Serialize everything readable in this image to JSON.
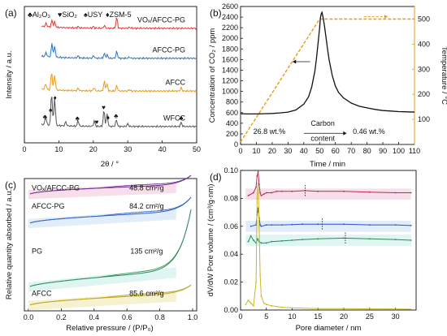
{
  "chart_data": [
    {
      "type": "line",
      "panel_label": "(a)",
      "xlabel": "2θ / °",
      "ylabel": "Intensity / a.u.",
      "xlim": [
        0,
        50
      ],
      "xticks": [
        0,
        10,
        20,
        30,
        40,
        50
      ],
      "legend_items": [
        {
          "symbol": "♣",
          "text": "Al₂O₃"
        },
        {
          "symbol": "♥",
          "text": "SiO₂"
        },
        {
          "symbol": "♠",
          "text": "USY"
        },
        {
          "symbol": "♦",
          "text": "ZSM-5"
        }
      ],
      "series": [
        {
          "name": "VOₓ/AFCC-PG",
          "color": "#e0393b",
          "offset": 0.84,
          "peaks": [
            [
              6.3,
              0.025
            ],
            [
              8.0,
              0.05
            ],
            [
              8.8,
              0.04
            ],
            [
              15.6,
              0.01
            ],
            [
              20.0,
              0.012
            ],
            [
              23.2,
              0.02
            ],
            [
              26.8,
              0.08
            ],
            [
              30.5,
              0.008
            ]
          ]
        },
        {
          "name": "AFCC-PG",
          "color": "#2e73c4",
          "offset": 0.62,
          "peaks": [
            [
              6.3,
              0.03
            ],
            [
              8.0,
              0.1
            ],
            [
              8.8,
              0.08
            ],
            [
              15.6,
              0.015
            ],
            [
              20.1,
              0.018
            ],
            [
              23.2,
              0.035
            ],
            [
              24.0,
              0.025
            ],
            [
              26.8,
              0.05
            ],
            [
              30.5,
              0.01
            ]
          ]
        },
        {
          "name": "AFCC",
          "color": "#e89b1a",
          "offset": 0.38,
          "peaks": [
            [
              6.2,
              0.04
            ],
            [
              7.9,
              0.13
            ],
            [
              8.8,
              0.11
            ],
            [
              15.6,
              0.02
            ],
            [
              20.2,
              0.025
            ],
            [
              23.2,
              0.07
            ],
            [
              24.0,
              0.05
            ],
            [
              26.8,
              0.04
            ],
            [
              30.5,
              0.01
            ],
            [
              45.5,
              0.025
            ]
          ]
        },
        {
          "name": "WFCC",
          "color": "#555555",
          "offset": 0.12,
          "peaks": [
            [
              6.2,
              0.06
            ],
            [
              7.9,
              0.24
            ],
            [
              8.8,
              0.2
            ],
            [
              12.0,
              0.03
            ],
            [
              15.6,
              0.04
            ],
            [
              20.3,
              0.04
            ],
            [
              23.1,
              0.12
            ],
            [
              24.0,
              0.09
            ],
            [
              26.7,
              0.05
            ],
            [
              30.0,
              0.02
            ],
            [
              45.5,
              0.03
            ]
          ]
        }
      ],
      "markers": [
        {
          "symbol": "♣",
          "x": 6.0
        },
        {
          "symbol": "♠",
          "x": 7.6
        },
        {
          "symbol": "♦",
          "x": 8.9
        },
        {
          "symbol": "♣",
          "x": 15.4
        },
        {
          "symbol": "♥",
          "x": 21.0
        },
        {
          "symbol": "♥",
          "x": 23.0
        },
        {
          "symbol": "♦",
          "x": 24.3
        },
        {
          "symbol": "♣",
          "x": 26.6
        },
        {
          "symbol": "♣",
          "x": 45.5
        }
      ]
    },
    {
      "type": "line",
      "panel_label": "(b)",
      "xlabel": "Time / min",
      "ylabel": "Concentration of CO₂ / ppm",
      "y2label": "Temperature / °C",
      "xlim": [
        0,
        110
      ],
      "ylim": [
        0,
        2600
      ],
      "y2lim": [
        0,
        550
      ],
      "xticks": [
        0,
        10,
        20,
        30,
        40,
        50,
        60,
        70,
        80,
        90,
        100,
        110
      ],
      "yticks": [
        0,
        200,
        400,
        600,
        800,
        1000,
        1200,
        1400,
        1600,
        1800,
        2000,
        2200,
        2400,
        2600
      ],
      "y2ticks": [
        100,
        200,
        300,
        400,
        500
      ],
      "co2": {
        "color": "#111111",
        "x": [
          0,
          5,
          10,
          15,
          20,
          25,
          30,
          35,
          40,
          43,
          45,
          47,
          48,
          49,
          50,
          50.5,
          51,
          51.5,
          52,
          53,
          54,
          55,
          56,
          58,
          60,
          62,
          65,
          70,
          75,
          80,
          85,
          90,
          95,
          100,
          105,
          110
        ],
        "y": [
          580,
          575,
          575,
          580,
          585,
          595,
          610,
          650,
          760,
          900,
          1080,
          1380,
          1620,
          1900,
          2200,
          2380,
          2460,
          2490,
          2420,
          2250,
          2020,
          1800,
          1600,
          1300,
          1100,
          980,
          880,
          780,
          720,
          690,
          660,
          640,
          630,
          620,
          615,
          610
        ]
      },
      "temperature": {
        "color": "#e89b1a",
        "x": [
          0,
          50,
          110
        ],
        "y": [
          10,
          500,
          500
        ]
      },
      "annotations": {
        "start": "26.8 wt.%",
        "middle": "Carbon content",
        "end": "0.46 wt.%"
      }
    },
    {
      "type": "line",
      "panel_label": "(c)",
      "xlabel": "Relative pressure / (P/P₀)",
      "ylabel": "Relative quantity absorbed / a.u.",
      "xlim": [
        0,
        1
      ],
      "xticks": [
        0.0,
        0.2,
        0.4,
        0.6,
        0.8,
        1.0
      ],
      "series": [
        {
          "name": "VOₓ/AFCC-PG",
          "value": "48.8 cm²/g",
          "color": "#6b2c91",
          "band": "#f6d6e6",
          "base": 0.88,
          "slope": 0.03,
          "rise": 0.08
        },
        {
          "name": "AFCC-PG",
          "value": "84.2 cm²/g",
          "color": "#2e5fc4",
          "band": "#d9e8f6",
          "base": 0.66,
          "slope": 0.05,
          "rise": 0.12
        },
        {
          "name": "PG",
          "value": "135 cm²/g",
          "color": "#2e8b57",
          "band": "#d6f2ee",
          "base": 0.18,
          "slope": 0.09,
          "rise": 0.52
        },
        {
          "name": "AFCC",
          "value": "85.6 cm²/g",
          "color": "#b9a51a",
          "band": "#f4efc6",
          "base": 0.04,
          "slope": 0.05,
          "rise": 0.07
        }
      ]
    },
    {
      "type": "line",
      "panel_label": "(d)",
      "xlabel": "Pore diameter / nm",
      "ylabel": "dV/dW Pore volume / (cm³/g·nm)",
      "xlim": [
        0,
        34
      ],
      "ylim": [
        0,
        0.1
      ],
      "xticks": [
        0,
        5,
        10,
        15,
        20,
        25,
        30
      ],
      "yticks": [
        0.0,
        0.02,
        0.04,
        0.06,
        0.08,
        0.1
      ],
      "series": [
        {
          "color": "#b03050",
          "band": "#f6d6e6",
          "base": 0.083,
          "x": [
            1.5,
            2.5,
            3.0,
            3.2,
            3.4,
            3.6,
            3.8,
            4.0,
            4.5,
            5.0,
            6.0,
            7.0,
            8.0,
            10.0,
            12.5,
            15.0,
            20.0,
            25.0,
            30.0,
            33.0
          ],
          "y": [
            0.082,
            0.084,
            0.088,
            0.096,
            0.099,
            0.09,
            0.084,
            0.082,
            0.083,
            0.084,
            0.084,
            0.085,
            0.085,
            0.085,
            0.0855,
            0.085,
            0.085,
            0.0845,
            0.084,
            0.084
          ],
          "dash_x": 12.5
        },
        {
          "color": "#2e4fd4",
          "band": "#d9e8f6",
          "base": 0.06,
          "x": [
            2.0,
            3.0,
            3.2,
            3.4,
            3.6,
            3.8,
            4.0,
            5.0,
            6.0,
            8.0,
            10.0,
            12.0,
            15.0,
            20.0,
            25.0,
            30.0,
            33.0
          ],
          "y": [
            0.06,
            0.061,
            0.068,
            0.073,
            0.066,
            0.061,
            0.06,
            0.061,
            0.061,
            0.061,
            0.0612,
            0.0615,
            0.0615,
            0.0615,
            0.061,
            0.061,
            0.0605
          ],
          "dash_x": 15.8
        },
        {
          "color": "#2e8b57",
          "band": "#d6f2ee",
          "base": 0.05,
          "x": [
            1.5,
            2.0,
            2.5,
            3.0,
            3.3,
            3.6,
            4.0,
            5.0,
            6.0,
            8.0,
            10.0,
            12.0,
            15.0,
            20.0,
            25.0,
            30.0,
            33.0
          ],
          "y": [
            0.049,
            0.053,
            0.05,
            0.048,
            0.051,
            0.049,
            0.048,
            0.048,
            0.049,
            0.0495,
            0.05,
            0.0505,
            0.051,
            0.0515,
            0.051,
            0.0505,
            0.05
          ],
          "dash_x": 20.3
        },
        {
          "color": "#c9b81e",
          "band": "#f4efc6",
          "base": 0.0,
          "x": [
            1.0,
            1.5,
            2.0,
            2.5,
            3.0,
            3.2,
            3.4,
            3.6,
            3.8,
            4.0,
            4.5,
            5.0,
            6.0,
            8.0,
            10.0,
            15.0,
            20.0,
            25.0,
            30.0,
            33.0
          ],
          "y": [
            0.004,
            0.007,
            0.005,
            0.003,
            0.02,
            0.08,
            0.091,
            0.06,
            0.025,
            0.01,
            0.005,
            0.004,
            0.003,
            0.002,
            0.0015,
            0.001,
            0.001,
            0.0008,
            0.0007,
            0.0006
          ]
        }
      ]
    }
  ]
}
